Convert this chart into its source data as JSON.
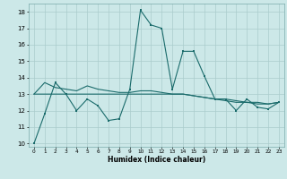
{
  "xlabel": "Humidex (Indice chaleur)",
  "xlim": [
    -0.5,
    23.5
  ],
  "ylim": [
    9.8,
    18.5
  ],
  "yticks": [
    10,
    11,
    12,
    13,
    14,
    15,
    16,
    17,
    18
  ],
  "xticks": [
    0,
    1,
    2,
    3,
    4,
    5,
    6,
    7,
    8,
    9,
    10,
    11,
    12,
    13,
    14,
    15,
    16,
    17,
    18,
    19,
    20,
    21,
    22,
    23
  ],
  "background_color": "#cce8e8",
  "grid_color": "#aacccc",
  "line_color": "#1a6b6b",
  "line1": [
    10.0,
    11.8,
    13.7,
    13.0,
    12.0,
    12.7,
    12.3,
    11.4,
    11.5,
    13.3,
    18.1,
    17.2,
    17.0,
    13.3,
    15.6,
    15.6,
    14.1,
    12.7,
    12.7,
    12.0,
    12.7,
    12.2,
    12.1,
    12.5
  ],
  "line2": [
    13.0,
    13.7,
    13.4,
    13.3,
    13.2,
    13.5,
    13.3,
    13.2,
    13.1,
    13.1,
    13.2,
    13.2,
    13.1,
    13.0,
    13.0,
    12.9,
    12.8,
    12.7,
    12.6,
    12.5,
    12.5,
    12.4,
    12.4,
    12.5
  ],
  "line3": [
    13.0,
    13.0,
    13.0,
    13.0,
    13.0,
    13.0,
    13.0,
    13.0,
    13.0,
    13.0,
    13.0,
    13.0,
    13.0,
    13.0,
    13.0,
    12.9,
    12.8,
    12.7,
    12.7,
    12.6,
    12.5,
    12.5,
    12.4,
    12.5
  ]
}
